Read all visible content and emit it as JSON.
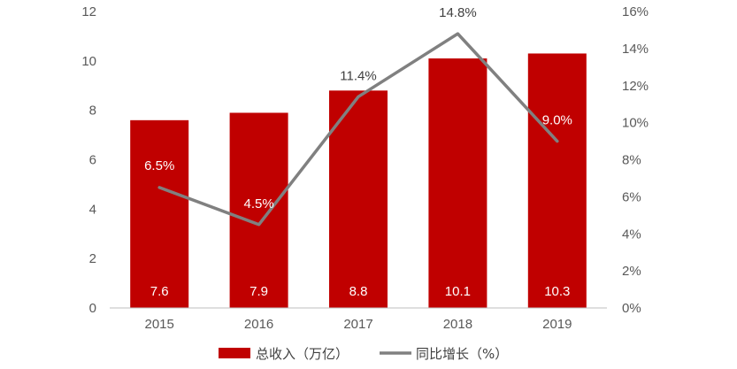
{
  "colors": {
    "bar": "#c00000",
    "line": "#808080",
    "axis": "#bfbfbf",
    "tick_text": "#595959",
    "label_on_bar": "#ffffff",
    "label_on_white": "#404040"
  },
  "chart_data": {
    "type": "bar",
    "categories": [
      "2015",
      "2016",
      "2017",
      "2018",
      "2019"
    ],
    "series": [
      {
        "name": "总收入（万亿）",
        "chart_type": "bar",
        "axis": "left",
        "values": [
          7.6,
          7.9,
          8.8,
          10.1,
          10.3
        ],
        "labels": [
          "7.6",
          "7.9",
          "8.8",
          "10.1",
          "10.3"
        ]
      },
      {
        "name": "同比增长（%）",
        "chart_type": "line",
        "axis": "right",
        "values": [
          6.5,
          4.5,
          11.4,
          14.8,
          9.0
        ],
        "labels": [
          "6.5%",
          "4.5%",
          "11.4%",
          "14.8%",
          "9.0%"
        ]
      }
    ],
    "y_left": {
      "min": 0,
      "max": 12,
      "ticks": [
        "0",
        "2",
        "4",
        "6",
        "8",
        "10",
        "12"
      ]
    },
    "y_right": {
      "min": 0,
      "max": 16,
      "ticks": [
        "0%",
        "2%",
        "4%",
        "6%",
        "8%",
        "10%",
        "12%",
        "14%",
        "16%"
      ]
    },
    "grid": false,
    "legend_position": "bottom"
  }
}
